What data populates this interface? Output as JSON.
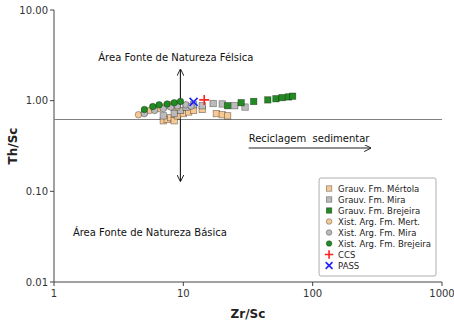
{
  "chart_data": {
    "type": "scatter",
    "x_label": "Zr/Sc",
    "y_label": "Th/Sc",
    "log": true,
    "grid": false,
    "legend": "lower right",
    "xlim": [
      1,
      1000
    ],
    "ylim": [
      0.01,
      10.0
    ],
    "xticks": [
      1,
      10,
      100,
      1000
    ],
    "yticks": [
      {
        "value": 0.01,
        "label": "0.01"
      },
      {
        "value": 0.1,
        "label": "0.10"
      },
      {
        "value": 1.0,
        "label": "1.00"
      },
      {
        "value": 10.0,
        "label": "10.00"
      }
    ],
    "reference_lines": [
      {
        "y": 0.62,
        "color": "#808080"
      }
    ],
    "arrows": [
      {
        "x1": 9.5,
        "y1": 0.13,
        "x2": 9.5,
        "y2": 2.2
      },
      {
        "x1": 9.5,
        "y1": 2.2,
        "x2": 9.5,
        "y2": 0.13
      },
      {
        "x1": 32,
        "y1": 0.3,
        "x2": 280,
        "y2": 0.3
      }
    ],
    "annotations": [
      {
        "text": "Reciclagem  sedimentar",
        "x": 32,
        "y": 0.38
      },
      {
        "text": "Área Fonte de Natureza Félsica",
        "x": 2.2,
        "y": 3.0
      },
      {
        "text": "Área Fonte de Natureza Básica",
        "x": 1.4,
        "y": 0.035
      }
    ],
    "series": [
      {
        "name": "Grauv. Fm. Mértola",
        "marker": "square",
        "color": "#F5C895",
        "x": [
          7.0,
          7.5,
          8.0,
          8.5,
          9.0,
          10.0,
          11.0,
          12.0,
          14.0,
          18.0,
          20.0,
          22.0
        ],
        "values": [
          0.6,
          0.62,
          0.65,
          0.6,
          0.68,
          0.72,
          0.75,
          0.78,
          0.8,
          0.72,
          0.7,
          0.68
        ]
      },
      {
        "name": "Grauv. Fm. Mira",
        "marker": "square",
        "color": "#BBBBBB",
        "x": [
          7.0,
          8.5,
          9.5,
          10.5,
          12.0,
          14.0,
          17.0,
          20.0,
          25.0,
          30.0
        ],
        "values": [
          0.68,
          0.72,
          0.78,
          0.85,
          0.9,
          0.88,
          0.93,
          0.92,
          0.88,
          0.85
        ]
      },
      {
        "name": "Grauv. Fm. Brejeira",
        "marker": "square",
        "color": "#228B22",
        "x": [
          22.0,
          28.0,
          35.0,
          45.0,
          52.0,
          58.0,
          65.0,
          70.0
        ],
        "values": [
          0.88,
          0.95,
          0.98,
          1.02,
          1.05,
          1.08,
          1.1,
          1.12
        ]
      },
      {
        "name": "Xist. Arg. Fm. Mert.",
        "marker": "circle",
        "color": "#F5C895",
        "x": [
          4.5,
          5.0,
          5.5,
          6.0,
          6.5,
          7.0,
          7.5,
          8.0,
          8.5,
          9.0
        ],
        "values": [
          0.7,
          0.74,
          0.78,
          0.8,
          0.82,
          0.85,
          0.88,
          0.9,
          0.87,
          0.85
        ]
      },
      {
        "name": "Xist. Arg. Fm. Mira",
        "marker": "circle",
        "color": "#BBBBBB",
        "x": [
          5.0,
          6.0,
          7.0,
          8.0,
          9.0,
          10.5,
          11.5
        ],
        "values": [
          0.72,
          0.78,
          0.82,
          0.85,
          0.88,
          0.9,
          0.87
        ]
      },
      {
        "name": "Xist. Arg. Fm. Brejeira",
        "marker": "circle",
        "color": "#228B22",
        "x": [
          5.0,
          5.8,
          6.5,
          7.5,
          8.5,
          9.5
        ],
        "values": [
          0.8,
          0.86,
          0.9,
          0.92,
          0.95,
          0.98
        ]
      },
      {
        "name": "CCS",
        "marker": "plus",
        "color": "#FF2222",
        "x": [
          14.5
        ],
        "values": [
          1.02
        ]
      },
      {
        "name": "PASS",
        "marker": "x",
        "color": "#2222FF",
        "x": [
          12.0
        ],
        "values": [
          0.97
        ]
      }
    ]
  }
}
